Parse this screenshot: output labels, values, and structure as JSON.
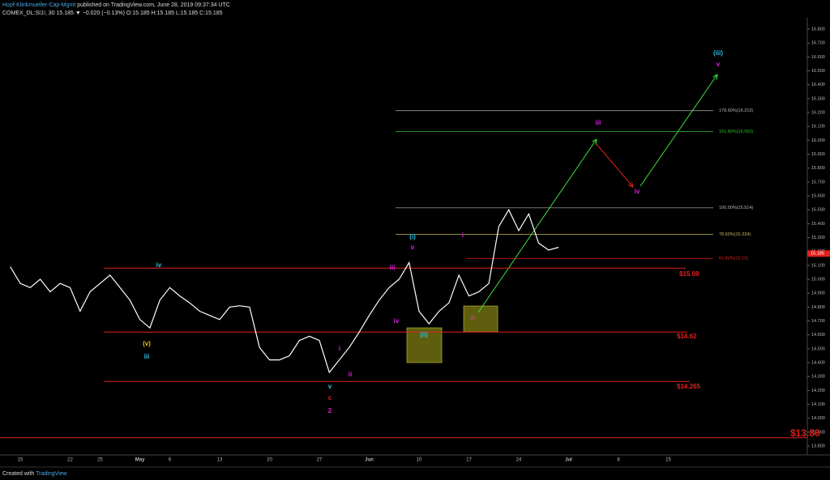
{
  "header": {
    "author": "Hopf-Klinkmueller-Cap-Mgmt",
    "published": "published on TradingView.com, June 28, 2019 09:37:34 UTC",
    "symbol_line": "COMEX_DL:SI1!, 30  15.185 ▼ −0.020 (−0.13%) O:15.185 H:15.185 L:15.185 C:15.185"
  },
  "footer": {
    "text": "Created with",
    "brand": "TradingView"
  },
  "chart_data": {
    "type": "line",
    "color": "#ffffff",
    "categories": [
      null,
      "15",
      null,
      null,
      null,
      null,
      "22",
      null,
      null,
      "25",
      null,
      null,
      null,
      "May",
      null,
      null,
      "6",
      null,
      null,
      null,
      null,
      "13",
      null,
      null,
      null,
      null,
      "20",
      null,
      null,
      null,
      null,
      "27",
      null,
      null,
      null,
      null,
      "Jun",
      null,
      null,
      null,
      null,
      "10",
      null,
      null,
      null,
      null,
      "17",
      null,
      null,
      null,
      null,
      "24",
      null,
      null,
      null,
      null,
      "Jul",
      null,
      null,
      null,
      null,
      "8",
      null,
      null,
      null,
      null,
      "15",
      null,
      null,
      null,
      null
    ],
    "values": [
      15.09,
      14.97,
      14.94,
      15.0,
      14.91,
      14.97,
      14.94,
      14.77,
      14.91,
      14.97,
      15.03,
      14.94,
      14.85,
      14.71,
      14.65,
      14.85,
      14.94,
      14.88,
      14.83,
      14.77,
      14.74,
      14.71,
      14.8,
      14.81,
      14.8,
      14.51,
      14.42,
      14.42,
      14.45,
      14.56,
      14.59,
      14.56,
      14.33,
      14.42,
      14.51,
      14.62,
      14.74,
      14.85,
      14.94,
      15.0,
      15.12,
      14.77,
      14.68,
      14.77,
      14.83,
      15.03,
      14.88,
      14.91,
      14.97,
      15.38,
      15.5,
      15.35,
      15.47,
      15.26,
      15.21,
      15.23,
      null,
      null,
      null,
      null,
      null,
      null,
      null,
      null,
      null,
      null,
      null,
      null,
      null,
      null,
      null
    ],
    "ylim": [
      13.748,
      16.864
    ],
    "yticks": [
      {
        "value": 13.8,
        "label": "13.800"
      },
      {
        "value": 13.9,
        "label": "13.900"
      },
      {
        "value": 14.0,
        "label": "14.000"
      },
      {
        "value": 14.1,
        "label": "14.100"
      },
      {
        "value": 14.2,
        "label": "14.200"
      },
      {
        "value": 14.3,
        "label": "14.300"
      },
      {
        "value": 14.4,
        "label": "14.400"
      },
      {
        "value": 14.5,
        "label": "14.500"
      },
      {
        "value": 14.6,
        "label": "14.600"
      },
      {
        "value": 14.7,
        "label": "14.700"
      },
      {
        "value": 14.8,
        "label": "14.800"
      },
      {
        "value": 14.9,
        "label": "14.900"
      },
      {
        "value": 15.0,
        "label": "15.000"
      },
      {
        "value": 15.1,
        "label": "15.100"
      },
      {
        "value": 15.2,
        "label": "15.200"
      },
      {
        "value": 15.3,
        "label": "15.300"
      },
      {
        "value": 15.4,
        "label": "15.400"
      },
      {
        "value": 15.5,
        "label": "15.500"
      },
      {
        "value": 15.6,
        "label": "15.600"
      },
      {
        "value": 15.7,
        "label": "15.700"
      },
      {
        "value": 15.8,
        "label": "15.800"
      },
      {
        "value": 15.9,
        "label": "15.900"
      },
      {
        "value": 16.0,
        "label": "16.000"
      },
      {
        "value": 16.1,
        "label": "16.100"
      },
      {
        "value": 16.2,
        "label": "16.200"
      },
      {
        "value": 16.3,
        "label": "16.300"
      },
      {
        "value": 16.4,
        "label": "16.400"
      },
      {
        "value": 16.5,
        "label": "16.500"
      },
      {
        "value": 16.6,
        "label": "16.600"
      },
      {
        "value": 16.7,
        "label": "16.700"
      },
      {
        "value": 16.8,
        "label": "16.800"
      }
    ],
    "last_price": 15.185,
    "levels": [
      {
        "value": 15.08,
        "label": "$15.08"
      },
      {
        "value": 14.62,
        "label": "$14.62"
      },
      {
        "value": 14.265,
        "label": "$14.265"
      },
      {
        "value": 13.86,
        "label": "$13.86"
      }
    ],
    "level_color": "#e0201c",
    "fib_levels": [
      {
        "value": 16.213,
        "label": "178.60%(16.213)",
        "color": "#b8b8b8"
      },
      {
        "value": 16.063,
        "label": "161.80%(16.063)",
        "color": "#2fbf2f"
      },
      {
        "value": 15.514,
        "label": "100.00%(15.514)",
        "color": "#b8b8b8"
      },
      {
        "value": 15.324,
        "label": "78.60%(15.324)",
        "color": "#c8b860"
      },
      {
        "value": 15.15,
        "label": "61.80%(15.15)",
        "color": "#e0201c"
      }
    ],
    "annotations": [
      "iv",
      "(v)",
      "iii",
      "iii",
      "iv",
      "(i)",
      "v",
      "(ii)",
      "i",
      "ii",
      "i",
      "ii",
      "v",
      "c",
      "2",
      "iii",
      "iv",
      "(iii)",
      "v"
    ]
  }
}
